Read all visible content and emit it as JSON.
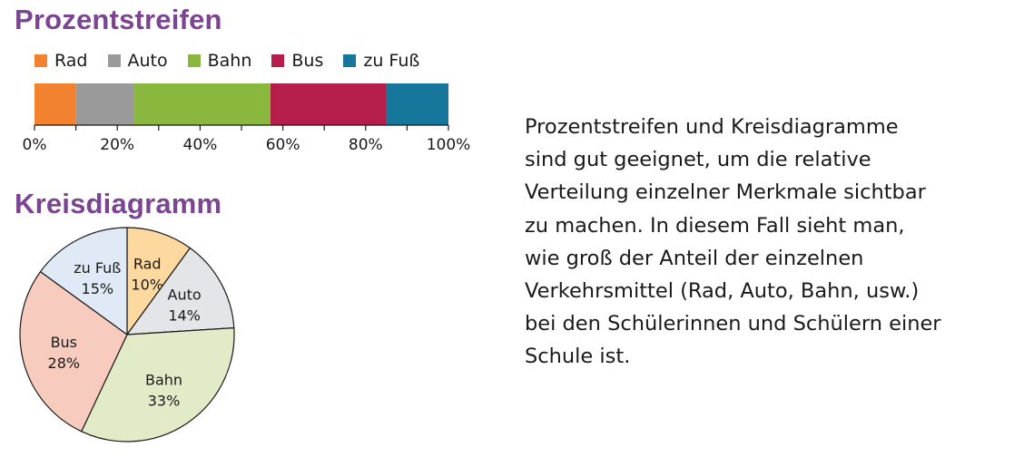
{
  "chart_data": [
    {
      "type": "bar",
      "orientation": "horizontal",
      "stacked": true,
      "title": "Prozentstreifen",
      "categories": [
        "Rad",
        "Auto",
        "Bahn",
        "Bus",
        "zu Fuß"
      ],
      "values": [
        10,
        14,
        33,
        28,
        15
      ],
      "colors": [
        "#f28230",
        "#9a9a9a",
        "#8ab83f",
        "#b51d4a",
        "#16769b"
      ],
      "xlim": [
        0,
        100
      ],
      "ticks": [
        0,
        10,
        20,
        30,
        40,
        50,
        60,
        70,
        80,
        90,
        100
      ],
      "tick_labels": [
        "0%",
        "20%",
        "40%",
        "60%",
        "80%",
        "100%"
      ],
      "tick_label_values": [
        0,
        20,
        40,
        60,
        80,
        100
      ],
      "legend_position": "top",
      "grid": false
    },
    {
      "type": "pie",
      "title": "Kreisdiagramm",
      "categories": [
        "Rad",
        "Auto",
        "Bahn",
        "Bus",
        "zu Fuß"
      ],
      "values": [
        10,
        14,
        33,
        28,
        15
      ],
      "data_labels": [
        "10%",
        "14%",
        "33%",
        "28%",
        "15%"
      ],
      "colors": [
        "#fdd9a0",
        "#e3e5e8",
        "#e1ebc7",
        "#f7cbbd",
        "#dfeaf6"
      ],
      "start_angle": "top",
      "direction": "clockwise"
    }
  ],
  "description_lines": [
    "Prozentstreifen und Kreisdiagramme",
    "sind gut geeignet, um die relative",
    "Verteilung einzelner Merkmale sichtbar",
    "zu machen. In diesem Fall sieht man,",
    "wie groß der Anteil der einzelnen",
    "Verkehrsmittel (Rad, Auto, Bahn, usw.)",
    "bei den Schülerinnen und Schülern einer",
    "Schule ist."
  ]
}
